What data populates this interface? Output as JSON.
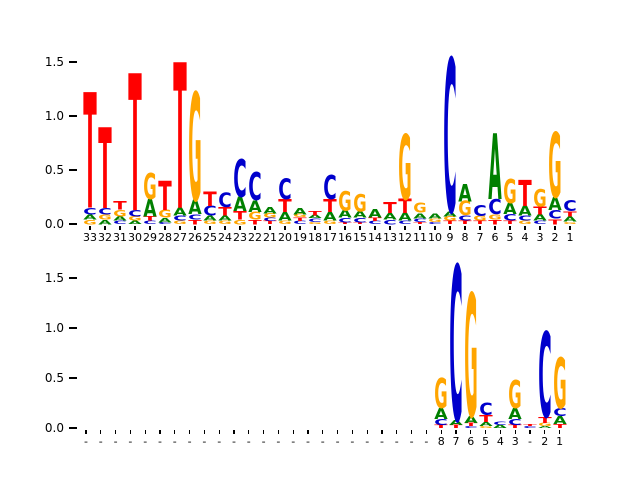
{
  "figure": {
    "background": "#ffffff"
  },
  "colors": {
    "A": "#008000",
    "C": "#0000cc",
    "G": "#ffa500",
    "T": "#ff0000"
  },
  "chart_data": [
    {
      "type": "sequence_logo",
      "panel": "top",
      "yticks": [
        "0.0",
        "0.5",
        "1.0",
        "1.5"
      ],
      "ylim": [
        0,
        1.6
      ],
      "positions": [
        {
          "label": "33",
          "stack": [
            [
              "G",
              0.04
            ],
            [
              "A",
              0.05
            ],
            [
              "C",
              0.06
            ],
            [
              "T",
              1.07
            ]
          ]
        },
        {
          "label": "32",
          "stack": [
            [
              "A",
              0.04
            ],
            [
              "G",
              0.05
            ],
            [
              "C",
              0.06
            ],
            [
              "T",
              0.75
            ]
          ]
        },
        {
          "label": "31",
          "stack": [
            [
              "C",
              0.03
            ],
            [
              "A",
              0.04
            ],
            [
              "G",
              0.06
            ],
            [
              "T",
              0.08
            ]
          ]
        },
        {
          "label": "30",
          "stack": [
            [
              "A",
              0.03
            ],
            [
              "G",
              0.04
            ],
            [
              "C",
              0.06
            ],
            [
              "T",
              1.27
            ]
          ]
        },
        {
          "label": "29",
          "stack": [
            [
              "C",
              0.03
            ],
            [
              "T",
              0.04
            ],
            [
              "A",
              0.16
            ],
            [
              "G",
              0.24
            ]
          ]
        },
        {
          "label": "28",
          "stack": [
            [
              "C",
              0.02
            ],
            [
              "A",
              0.04
            ],
            [
              "G",
              0.07
            ],
            [
              "T",
              0.27
            ]
          ]
        },
        {
          "label": "27",
          "stack": [
            [
              "G",
              0.03
            ],
            [
              "C",
              0.05
            ],
            [
              "A",
              0.07
            ],
            [
              "T",
              1.35
            ]
          ]
        },
        {
          "label": "26",
          "stack": [
            [
              "T",
              0.04
            ],
            [
              "C",
              0.05
            ],
            [
              "A",
              0.13
            ],
            [
              "G",
              1.0
            ]
          ]
        },
        {
          "label": "25",
          "stack": [
            [
              "G",
              0.03
            ],
            [
              "A",
              0.05
            ],
            [
              "C",
              0.09
            ],
            [
              "T",
              0.13
            ]
          ]
        },
        {
          "label": "24",
          "stack": [
            [
              "G",
              0.03
            ],
            [
              "A",
              0.05
            ],
            [
              "T",
              0.08
            ],
            [
              "C",
              0.13
            ]
          ]
        },
        {
          "label": "23",
          "stack": [
            [
              "G",
              0.04
            ],
            [
              "T",
              0.08
            ],
            [
              "A",
              0.13
            ],
            [
              "C",
              0.35
            ]
          ]
        },
        {
          "label": "22",
          "stack": [
            [
              "T",
              0.04
            ],
            [
              "G",
              0.07
            ],
            [
              "A",
              0.11
            ],
            [
              "C",
              0.26
            ]
          ]
        },
        {
          "label": "21",
          "stack": [
            [
              "T",
              0.03
            ],
            [
              "C",
              0.03
            ],
            [
              "G",
              0.04
            ],
            [
              "A",
              0.06
            ]
          ]
        },
        {
          "label": "20",
          "stack": [
            [
              "G",
              0.03
            ],
            [
              "A",
              0.08
            ],
            [
              "T",
              0.12
            ],
            [
              "C",
              0.19
            ]
          ]
        },
        {
          "label": "19",
          "stack": [
            [
              "C",
              0.03
            ],
            [
              "T",
              0.03
            ],
            [
              "G",
              0.03
            ],
            [
              "A",
              0.06
            ]
          ]
        },
        {
          "label": "18",
          "stack": [
            [
              "G",
              0.02
            ],
            [
              "C",
              0.03
            ],
            [
              "A",
              0.03
            ],
            [
              "T",
              0.04
            ]
          ]
        },
        {
          "label": "17",
          "stack": [
            [
              "G",
              0.03
            ],
            [
              "A",
              0.08
            ],
            [
              "T",
              0.12
            ],
            [
              "C",
              0.22
            ]
          ]
        },
        {
          "label": "16",
          "stack": [
            [
              "T",
              0.02
            ],
            [
              "C",
              0.04
            ],
            [
              "A",
              0.07
            ],
            [
              "G",
              0.18
            ]
          ]
        },
        {
          "label": "15",
          "stack": [
            [
              "T",
              0.02
            ],
            [
              "C",
              0.04
            ],
            [
              "A",
              0.06
            ],
            [
              "G",
              0.16
            ]
          ]
        },
        {
          "label": "14",
          "stack": [
            [
              "C",
              0.03
            ],
            [
              "T",
              0.03
            ],
            [
              "A",
              0.08
            ]
          ]
        },
        {
          "label": "13",
          "stack": [
            [
              "C",
              0.04
            ],
            [
              "A",
              0.06
            ],
            [
              "T",
              0.1
            ]
          ]
        },
        {
          "label": "12",
          "stack": [
            [
              "C",
              0.03
            ],
            [
              "A",
              0.07
            ],
            [
              "T",
              0.13
            ],
            [
              "G",
              0.6
            ]
          ]
        },
        {
          "label": "11",
          "stack": [
            [
              "T",
              0.02
            ],
            [
              "C",
              0.03
            ],
            [
              "A",
              0.05
            ],
            [
              "G",
              0.09
            ]
          ]
        },
        {
          "label": "10",
          "stack": [
            [
              "C",
              0.02
            ],
            [
              "G",
              0.03
            ],
            [
              "A",
              0.05
            ]
          ]
        },
        {
          "label": "9",
          "stack": [
            [
              "T",
              0.03
            ],
            [
              "G",
              0.04
            ],
            [
              "A",
              0.05
            ],
            [
              "C",
              1.42
            ]
          ]
        },
        {
          "label": "8",
          "stack": [
            [
              "T",
              0.03
            ],
            [
              "C",
              0.05
            ],
            [
              "G",
              0.13
            ],
            [
              "A",
              0.16
            ]
          ]
        },
        {
          "label": "7",
          "stack": [
            [
              "T",
              0.03
            ],
            [
              "G",
              0.05
            ],
            [
              "C",
              0.1
            ]
          ]
        },
        {
          "label": "6",
          "stack": [
            [
              "T",
              0.04
            ],
            [
              "G",
              0.05
            ],
            [
              "C",
              0.14
            ],
            [
              "A",
              0.61
            ]
          ]
        },
        {
          "label": "5",
          "stack": [
            [
              "T",
              0.03
            ],
            [
              "C",
              0.06
            ],
            [
              "A",
              0.11
            ],
            [
              "G",
              0.22
            ]
          ]
        },
        {
          "label": "4",
          "stack": [
            [
              "G",
              0.03
            ],
            [
              "C",
              0.05
            ],
            [
              "A",
              0.09
            ],
            [
              "T",
              0.24
            ]
          ]
        },
        {
          "label": "3",
          "stack": [
            [
              "C",
              0.03
            ],
            [
              "A",
              0.06
            ],
            [
              "T",
              0.07
            ],
            [
              "G",
              0.16
            ]
          ]
        },
        {
          "label": "2",
          "stack": [
            [
              "T",
              0.05
            ],
            [
              "C",
              0.08
            ],
            [
              "A",
              0.12
            ],
            [
              "G",
              0.6
            ]
          ]
        },
        {
          "label": "1",
          "stack": [
            [
              "G",
              0.02
            ],
            [
              "A",
              0.05
            ],
            [
              "T",
              0.05
            ],
            [
              "C",
              0.1
            ]
          ]
        }
      ]
    },
    {
      "type": "sequence_logo",
      "panel": "bottom",
      "yticks": [
        "0.0",
        "0.5",
        "1.0",
        "1.5"
      ],
      "ylim": [
        0,
        1.7
      ],
      "positions": [
        {
          "label": "-",
          "stack": []
        },
        {
          "label": "-",
          "stack": []
        },
        {
          "label": "-",
          "stack": []
        },
        {
          "label": "-",
          "stack": []
        },
        {
          "label": "-",
          "stack": []
        },
        {
          "label": "-",
          "stack": []
        },
        {
          "label": "-",
          "stack": []
        },
        {
          "label": "-",
          "stack": []
        },
        {
          "label": "-",
          "stack": []
        },
        {
          "label": "-",
          "stack": []
        },
        {
          "label": "-",
          "stack": []
        },
        {
          "label": "-",
          "stack": []
        },
        {
          "label": "-",
          "stack": []
        },
        {
          "label": "-",
          "stack": []
        },
        {
          "label": "-",
          "stack": []
        },
        {
          "label": "-",
          "stack": []
        },
        {
          "label": "-",
          "stack": []
        },
        {
          "label": "-",
          "stack": []
        },
        {
          "label": "-",
          "stack": []
        },
        {
          "label": "-",
          "stack": []
        },
        {
          "label": "-",
          "stack": []
        },
        {
          "label": "-",
          "stack": []
        },
        {
          "label": "-",
          "stack": []
        },
        {
          "label": "-",
          "stack": []
        },
        {
          "label": "8",
          "stack": [
            [
              "T",
              0.03
            ],
            [
              "C",
              0.06
            ],
            [
              "A",
              0.11
            ],
            [
              "G",
              0.3
            ]
          ]
        },
        {
          "label": "7",
          "stack": [
            [
              "T",
              0.03
            ],
            [
              "A",
              0.05
            ],
            [
              "C",
              1.55
            ]
          ]
        },
        {
          "label": "6",
          "stack": [
            [
              "C",
              0.02
            ],
            [
              "T",
              0.03
            ],
            [
              "A",
              0.07
            ],
            [
              "G",
              1.23
            ]
          ]
        },
        {
          "label": "5",
          "stack": [
            [
              "G",
              0.02
            ],
            [
              "A",
              0.04
            ],
            [
              "T",
              0.07
            ],
            [
              "C",
              0.12
            ]
          ]
        },
        {
          "label": "4",
          "stack": [
            [
              "A",
              0.03
            ],
            [
              "C",
              0.03
            ]
          ]
        },
        {
          "label": "3",
          "stack": [
            [
              "T",
              0.03
            ],
            [
              "C",
              0.06
            ],
            [
              "A",
              0.11
            ],
            [
              "G",
              0.28
            ]
          ]
        },
        {
          "label": "-",
          "stack": [
            [
              "C",
              0.02
            ],
            [
              "T",
              0.02
            ]
          ]
        },
        {
          "label": "2",
          "stack": [
            [
              "A",
              0.02
            ],
            [
              "G",
              0.03
            ],
            [
              "T",
              0.06
            ],
            [
              "C",
              0.85
            ]
          ]
        },
        {
          "label": "1",
          "stack": [
            [
              "T",
              0.04
            ],
            [
              "A",
              0.08
            ],
            [
              "C",
              0.08
            ],
            [
              "G",
              0.51
            ]
          ]
        }
      ]
    }
  ]
}
